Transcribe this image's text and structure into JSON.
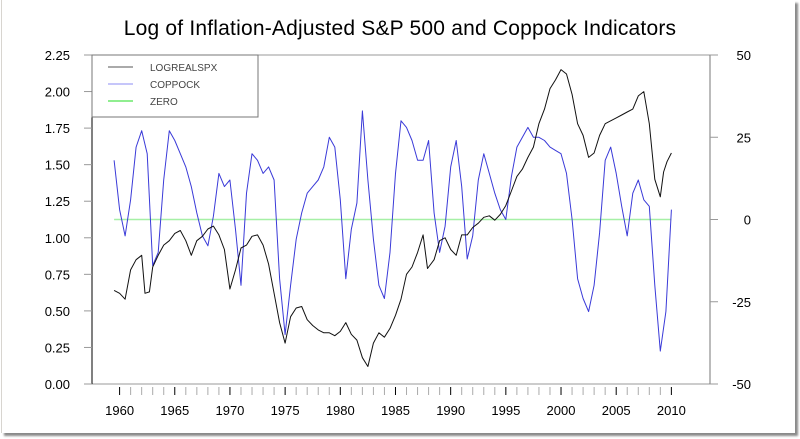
{
  "chart_data": {
    "type": "line",
    "title": "Log of Inflation-Adjusted S&P 500 and Coppock Indicators",
    "xlabel": "",
    "ylabel_left": "",
    "ylabel_right": "",
    "xlim": [
      1957.5,
      2013.5
    ],
    "ylim_left": [
      0,
      2.25
    ],
    "ylim_right": [
      -50,
      50
    ],
    "x_ticks": [
      1960,
      1965,
      1970,
      1975,
      1980,
      1985,
      1990,
      1995,
      2000,
      2005,
      2010
    ],
    "x_tick_labels": [
      "1960",
      "1965",
      "1970",
      "1975",
      "1980",
      "1985",
      "1990",
      "1995",
      "2000",
      "2005",
      "2010"
    ],
    "y_left_ticks": [
      0.0,
      0.25,
      0.5,
      0.75,
      1.0,
      1.25,
      1.5,
      1.75,
      2.0,
      2.25
    ],
    "y_left_tick_labels": [
      "0.00",
      "0.25",
      "0.50",
      "0.75",
      "1.00",
      "1.25",
      "1.50",
      "1.75",
      "2.00",
      "2.25"
    ],
    "y_right_ticks": [
      -50,
      -25,
      0,
      25,
      50
    ],
    "y_right_tick_labels": [
      "-50",
      "-25",
      "0",
      "25",
      "50"
    ],
    "grid": false,
    "legend_position": "top-left",
    "legend": [
      {
        "name": "LOGREALSPX",
        "color": "#000000"
      },
      {
        "name": "COPPOCK",
        "color": "#3333dd"
      },
      {
        "name": "ZERO",
        "color": "#33dd33"
      }
    ],
    "series": [
      {
        "name": "LOGREALSPX",
        "axis": "left",
        "color": "#000000",
        "x": [
          1959.5,
          1960.0,
          1960.5,
          1961.0,
          1961.5,
          1962.0,
          1962.3,
          1962.7,
          1963.0,
          1963.5,
          1964.0,
          1964.5,
          1965.0,
          1965.5,
          1966.0,
          1966.5,
          1967.0,
          1967.5,
          1968.0,
          1968.5,
          1969.0,
          1969.5,
          1970.0,
          1970.5,
          1971.0,
          1971.5,
          1972.0,
          1972.5,
          1973.0,
          1973.5,
          1974.0,
          1974.5,
          1975.0,
          1975.5,
          1976.0,
          1976.5,
          1977.0,
          1977.5,
          1978.0,
          1978.5,
          1979.0,
          1979.5,
          1980.0,
          1980.5,
          1981.0,
          1981.5,
          1982.0,
          1982.5,
          1983.0,
          1983.5,
          1984.0,
          1984.5,
          1985.0,
          1985.5,
          1986.0,
          1986.5,
          1987.0,
          1987.5,
          1987.9,
          1988.5,
          1989.0,
          1989.5,
          1990.0,
          1990.5,
          1991.0,
          1991.5,
          1992.0,
          1992.5,
          1993.0,
          1993.5,
          1994.0,
          1994.5,
          1995.0,
          1995.5,
          1996.0,
          1996.5,
          1997.0,
          1997.5,
          1998.0,
          1998.5,
          1999.0,
          1999.5,
          2000.0,
          2000.5,
          2001.0,
          2001.5,
          2002.0,
          2002.5,
          2003.0,
          2003.5,
          2004.0,
          2004.5,
          2005.0,
          2005.5,
          2006.0,
          2006.5,
          2007.0,
          2007.5,
          2008.0,
          2008.5,
          2009.0,
          2009.3,
          2009.6,
          2010.0
        ],
        "y": [
          0.64,
          0.62,
          0.58,
          0.78,
          0.85,
          0.88,
          0.62,
          0.63,
          0.8,
          0.88,
          0.95,
          0.98,
          1.03,
          1.05,
          0.98,
          0.88,
          0.98,
          1.01,
          1.06,
          1.08,
          1.02,
          0.92,
          0.65,
          0.78,
          0.93,
          0.95,
          1.01,
          1.02,
          0.95,
          0.82,
          0.62,
          0.42,
          0.28,
          0.46,
          0.52,
          0.53,
          0.44,
          0.4,
          0.37,
          0.35,
          0.35,
          0.33,
          0.36,
          0.42,
          0.34,
          0.3,
          0.18,
          0.12,
          0.28,
          0.35,
          0.32,
          0.38,
          0.47,
          0.58,
          0.75,
          0.8,
          0.9,
          1.02,
          0.79,
          0.85,
          0.98,
          1.0,
          0.92,
          0.88,
          1.02,
          1.02,
          1.07,
          1.1,
          1.14,
          1.15,
          1.12,
          1.16,
          1.22,
          1.32,
          1.42,
          1.47,
          1.55,
          1.62,
          1.78,
          1.88,
          2.02,
          2.08,
          2.15,
          2.12,
          1.98,
          1.78,
          1.7,
          1.55,
          1.58,
          1.7,
          1.78,
          1.8,
          1.82,
          1.84,
          1.86,
          1.88,
          1.97,
          2.0,
          1.78,
          1.4,
          1.28,
          1.45,
          1.52,
          1.58
        ]
      },
      {
        "name": "COPPOCK",
        "axis": "right",
        "color": "#3333dd",
        "x": [
          1959.5,
          1960.0,
          1960.5,
          1961.0,
          1961.5,
          1962.0,
          1962.5,
          1963.0,
          1963.5,
          1964.0,
          1964.5,
          1965.0,
          1965.5,
          1966.0,
          1966.5,
          1967.0,
          1967.5,
          1968.0,
          1968.5,
          1969.0,
          1969.5,
          1970.0,
          1970.5,
          1971.0,
          1971.5,
          1972.0,
          1972.5,
          1973.0,
          1973.5,
          1974.0,
          1974.5,
          1975.0,
          1975.5,
          1976.0,
          1976.5,
          1977.0,
          1977.5,
          1978.0,
          1978.5,
          1979.0,
          1979.5,
          1980.0,
          1980.5,
          1981.0,
          1981.5,
          1982.0,
          1982.5,
          1983.0,
          1983.5,
          1984.0,
          1984.5,
          1985.0,
          1985.5,
          1986.0,
          1986.5,
          1987.0,
          1987.5,
          1988.0,
          1988.5,
          1989.0,
          1989.5,
          1990.0,
          1990.5,
          1991.0,
          1991.5,
          1992.0,
          1992.5,
          1993.0,
          1993.5,
          1994.0,
          1994.5,
          1995.0,
          1995.5,
          1996.0,
          1996.5,
          1997.0,
          1997.5,
          1998.0,
          1998.5,
          1999.0,
          1999.5,
          2000.0,
          2000.5,
          2001.0,
          2001.5,
          2002.0,
          2002.5,
          2003.0,
          2003.5,
          2004.0,
          2004.5,
          2005.0,
          2005.5,
          2006.0,
          2006.5,
          2007.0,
          2007.5,
          2008.0,
          2008.5,
          2009.0,
          2009.5,
          2010.0
        ],
        "y": [
          18,
          3,
          -5,
          6,
          22,
          27,
          20,
          -14,
          -10,
          12,
          27,
          24,
          20,
          16,
          10,
          2,
          -5,
          -8,
          1,
          14,
          10,
          12,
          -3,
          -20,
          8,
          20,
          18,
          14,
          16,
          12,
          -18,
          -35,
          -20,
          -6,
          2,
          8,
          10,
          12,
          16,
          25,
          22,
          6,
          -18,
          -3,
          5,
          33,
          12,
          -6,
          -20,
          -24,
          -10,
          14,
          30,
          28,
          24,
          18,
          18,
          24,
          2,
          -10,
          -2,
          16,
          24,
          10,
          -12,
          -5,
          12,
          20,
          14,
          8,
          3,
          0,
          13,
          22,
          25,
          28,
          25,
          25,
          24,
          22,
          21,
          20,
          14,
          0,
          -18,
          -24,
          -28,
          -20,
          -4,
          18,
          22,
          14,
          4,
          -5,
          8,
          12,
          6,
          4,
          -20,
          -40,
          -28,
          3
        ]
      },
      {
        "name": "ZERO",
        "axis": "right",
        "color": "#33dd33",
        "x": [
          1959.5,
          2010.0
        ],
        "y": [
          0,
          0
        ]
      }
    ]
  }
}
